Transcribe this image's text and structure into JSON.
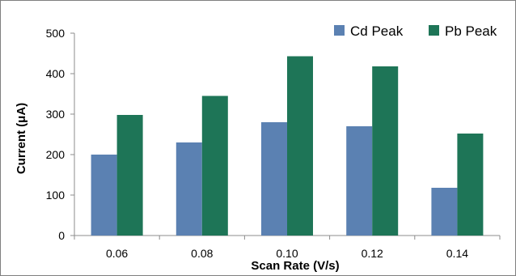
{
  "chart_data": {
    "type": "bar",
    "categories": [
      "0.06",
      "0.08",
      "0.10",
      "0.12",
      "0.14"
    ],
    "series": [
      {
        "name": "Cd Peak",
        "color": "#5b81b2",
        "values": [
          200,
          230,
          280,
          270,
          118
        ]
      },
      {
        "name": "Pb Peak",
        "color": "#1e7557",
        "values": [
          298,
          345,
          443,
          418,
          252
        ]
      }
    ],
    "xlabel": "Scan Rate (V/s)",
    "ylabel": "Current (μA)",
    "ylim": [
      0,
      500
    ],
    "yticks": [
      "0",
      "100",
      "200",
      "300",
      "400",
      "500"
    ],
    "grid": false,
    "legend_position": "top-right"
  }
}
